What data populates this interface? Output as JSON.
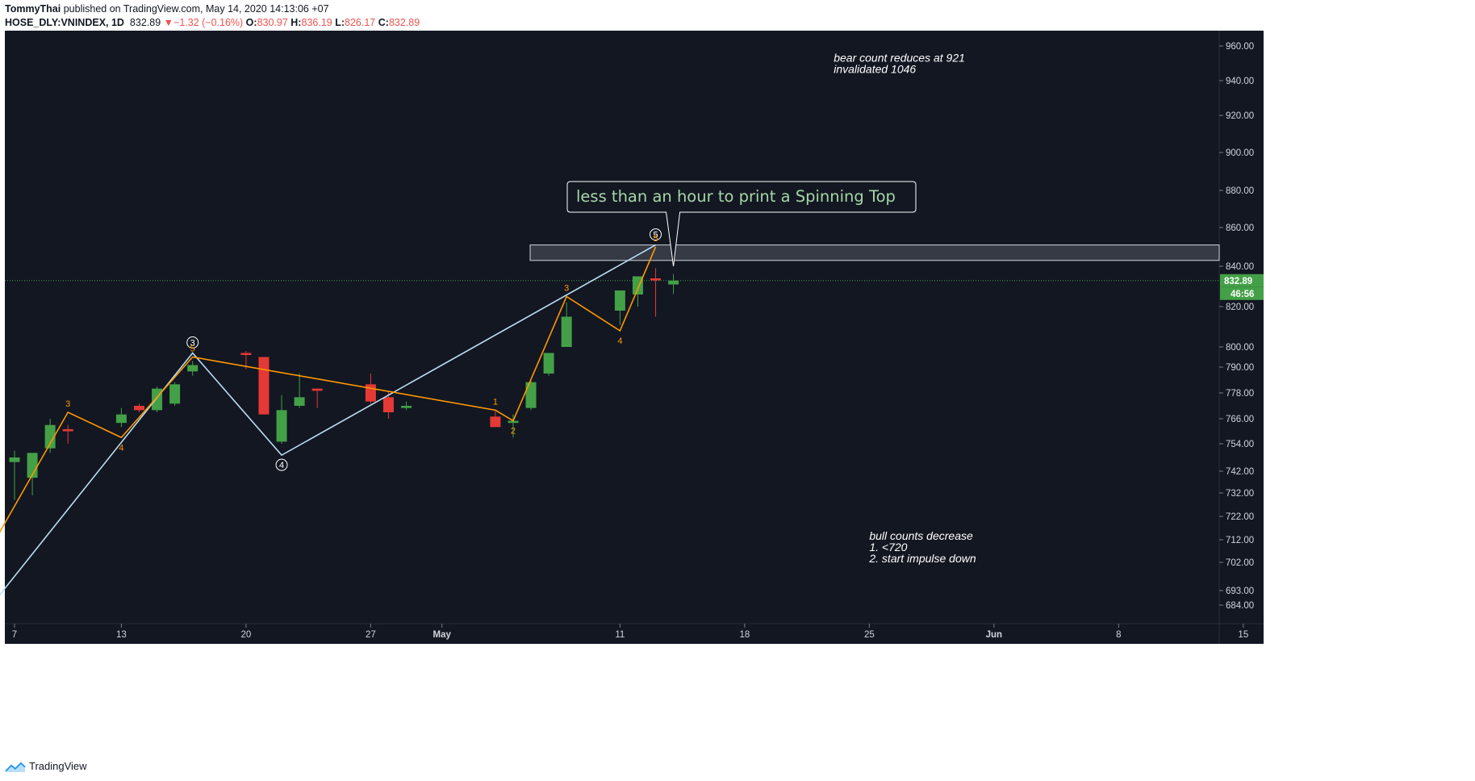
{
  "header": {
    "author": "TommyThai",
    "published_text": "published on TradingView.com, May 14, 2020 14:13:06 +07",
    "symbol": "HOSE_DLY:VNINDEX, 1D",
    "last": "832.89",
    "change_arrow": "▼",
    "change": "−1.32 (−0.16%)",
    "o_label": "O:",
    "o_value": "830.97",
    "h_label": "H:",
    "h_value": "836.19",
    "l_label": "L:",
    "l_value": "826.17",
    "c_label": "C:",
    "c_value": "832.89"
  },
  "footer": {
    "brand": "TradingView",
    "brand_icon": "tradingview-logo-icon"
  },
  "colors": {
    "background": "#131722",
    "bull": "#43a047",
    "bear": "#e53935",
    "wave_minor": "#ff9800",
    "wave_major": "#bcdff3",
    "text": "#ffffff",
    "callout_text": "#a5d6a7",
    "axis_text": "#d1d4dc"
  },
  "chart_data": {
    "type": "candlestick",
    "y_ticks": [
      684,
      693,
      702,
      712,
      722,
      732,
      742,
      754,
      766,
      778,
      790,
      800,
      820,
      840,
      860,
      880,
      900,
      920,
      940,
      960
    ],
    "y_tick_labels": [
      "684.00",
      "693.00",
      "702.00",
      "712.00",
      "722.00",
      "732.00",
      "742.00",
      "754.00",
      "766.00",
      "778.00",
      "790.00",
      "800.00",
      "820.00",
      "840.00",
      "860.00",
      "880.00",
      "900.00",
      "920.00",
      "940.00",
      "960.00"
    ],
    "x_ticks": [
      {
        "date": "2020-04-07",
        "label": "7"
      },
      {
        "date": "2020-04-13",
        "label": "13"
      },
      {
        "date": "2020-04-20",
        "label": "20"
      },
      {
        "date": "2020-04-27",
        "label": "27"
      },
      {
        "date": "2020-05-01",
        "label": "May"
      },
      {
        "date": "2020-05-11",
        "label": "11"
      },
      {
        "date": "2020-05-18",
        "label": "18"
      },
      {
        "date": "2020-05-25",
        "label": "25"
      },
      {
        "date": "2020-06-01",
        "label": "Jun"
      },
      {
        "date": "2020-06-08",
        "label": "8"
      },
      {
        "date": "2020-06-15",
        "label": "15"
      }
    ],
    "candles": [
      {
        "date": "2020-04-07",
        "o": 746,
        "h": 751,
        "l": 729,
        "c": 748
      },
      {
        "date": "2020-04-08",
        "o": 739,
        "h": 750,
        "l": 731,
        "c": 750
      },
      {
        "date": "2020-04-09",
        "o": 752,
        "h": 766,
        "l": 750,
        "c": 763
      },
      {
        "date": "2020-04-10",
        "o": 761,
        "h": 763,
        "l": 754,
        "c": 760
      },
      {
        "date": "2020-04-13",
        "o": 764,
        "h": 771,
        "l": 762,
        "c": 768
      },
      {
        "date": "2020-04-14",
        "o": 772,
        "h": 773,
        "l": 769,
        "c": 770
      },
      {
        "date": "2020-04-15",
        "o": 770,
        "h": 781,
        "l": 769,
        "c": 780
      },
      {
        "date": "2020-04-16",
        "o": 773,
        "h": 783,
        "l": 772,
        "c": 782
      },
      {
        "date": "2020-04-17",
        "o": 788,
        "h": 793,
        "l": 786,
        "c": 791
      },
      {
        "date": "2020-04-20",
        "o": 797,
        "h": 798,
        "l": 789,
        "c": 796
      },
      {
        "date": "2020-04-21",
        "o": 795,
        "h": 795,
        "l": 768,
        "c": 768
      },
      {
        "date": "2020-04-22",
        "o": 755,
        "h": 777,
        "l": 754,
        "c": 770
      },
      {
        "date": "2020-04-23",
        "o": 772,
        "h": 787,
        "l": 771,
        "c": 776
      },
      {
        "date": "2020-04-24",
        "o": 780,
        "h": 780,
        "l": 771,
        "c": 779
      },
      {
        "date": "2020-04-27",
        "o": 782,
        "h": 787,
        "l": 773,
        "c": 774
      },
      {
        "date": "2020-04-28",
        "o": 776,
        "h": 779,
        "l": 766,
        "c": 769
      },
      {
        "date": "2020-04-29",
        "o": 771,
        "h": 774,
        "l": 770,
        "c": 772
      },
      {
        "date": "2020-05-04",
        "o": 767,
        "h": 770,
        "l": 762,
        "c": 762
      },
      {
        "date": "2020-05-05",
        "o": 764,
        "h": 768,
        "l": 757,
        "c": 765
      },
      {
        "date": "2020-05-06",
        "o": 771,
        "h": 784,
        "l": 770,
        "c": 783
      },
      {
        "date": "2020-05-07",
        "o": 787,
        "h": 797,
        "l": 786,
        "c": 797
      },
      {
        "date": "2020-05-08",
        "o": 800,
        "h": 822,
        "l": 800,
        "c": 815
      },
      {
        "date": "2020-05-11",
        "o": 818,
        "h": 828,
        "l": 811,
        "c": 828
      },
      {
        "date": "2020-05-12",
        "o": 826,
        "h": 835,
        "l": 820,
        "c": 835
      },
      {
        "date": "2020-05-13",
        "o": 834,
        "h": 839,
        "l": 815,
        "c": 833
      },
      {
        "date": "2020-05-14",
        "o": 830.97,
        "h": 836.19,
        "l": 826.17,
        "c": 832.89
      }
    ],
    "last_price": 832.89,
    "last_price_label": "832.89",
    "countdown_label": "46:56",
    "resistance_zone": {
      "from_date": "2020-05-06",
      "to_date": "2020-06-18",
      "low": 843,
      "high": 851
    },
    "wave_major": [
      {
        "date": "2020-04-06",
        "price": 688
      },
      {
        "date": "2020-04-17",
        "price": 797
      },
      {
        "date": "2020-04-22",
        "price": 749
      },
      {
        "date": "2020-05-13",
        "price": 851
      }
    ],
    "wave_major_labels": [
      {
        "date": "2020-04-17",
        "price": 797,
        "label": "3"
      },
      {
        "date": "2020-04-22",
        "price": 749,
        "label": "4"
      },
      {
        "date": "2020-05-13",
        "price": 851,
        "label": "5"
      }
    ],
    "wave_minor": [
      {
        "date": "2020-04-06",
        "price": 713
      },
      {
        "date": "2020-04-10",
        "price": 769
      },
      {
        "date": "2020-04-13",
        "price": 757
      },
      {
        "date": "2020-04-17",
        "price": 795
      },
      {
        "date": "2020-05-04",
        "price": 770
      },
      {
        "date": "2020-05-05",
        "price": 765
      },
      {
        "date": "2020-05-08",
        "price": 825
      },
      {
        "date": "2020-05-11",
        "price": 808
      },
      {
        "date": "2020-05-13",
        "price": 850
      }
    ],
    "wave_minor_labels": [
      {
        "date": "2020-04-10",
        "price": 769,
        "label": "3",
        "pos": "above"
      },
      {
        "date": "2020-04-13",
        "price": 757,
        "label": "4",
        "pos": "below"
      },
      {
        "date": "2020-04-17",
        "price": 795,
        "label": "5",
        "pos": "above"
      },
      {
        "date": "2020-05-04",
        "price": 770,
        "label": "1",
        "pos": "above"
      },
      {
        "date": "2020-05-05",
        "price": 765,
        "label": "2",
        "pos": "below"
      },
      {
        "date": "2020-05-08",
        "price": 825,
        "label": "3",
        "pos": "above"
      },
      {
        "date": "2020-05-11",
        "price": 808,
        "label": "4",
        "pos": "below"
      },
      {
        "date": "2020-05-13",
        "price": 850,
        "label": "5",
        "pos": "above"
      }
    ],
    "callout": {
      "text": "less than an hour to print a Spinning Top",
      "date": "2020-05-14",
      "price": 840
    },
    "notes": [
      {
        "lines": [
          "bear count reduces at 921",
          "invalidated 1046"
        ],
        "date": "2020-05-23",
        "price": 945
      },
      {
        "lines": [
          "bull counts decrease",
          "1.  <720",
          "2. start impulse down"
        ],
        "date": "2020-05-25",
        "price": 712
      }
    ]
  }
}
